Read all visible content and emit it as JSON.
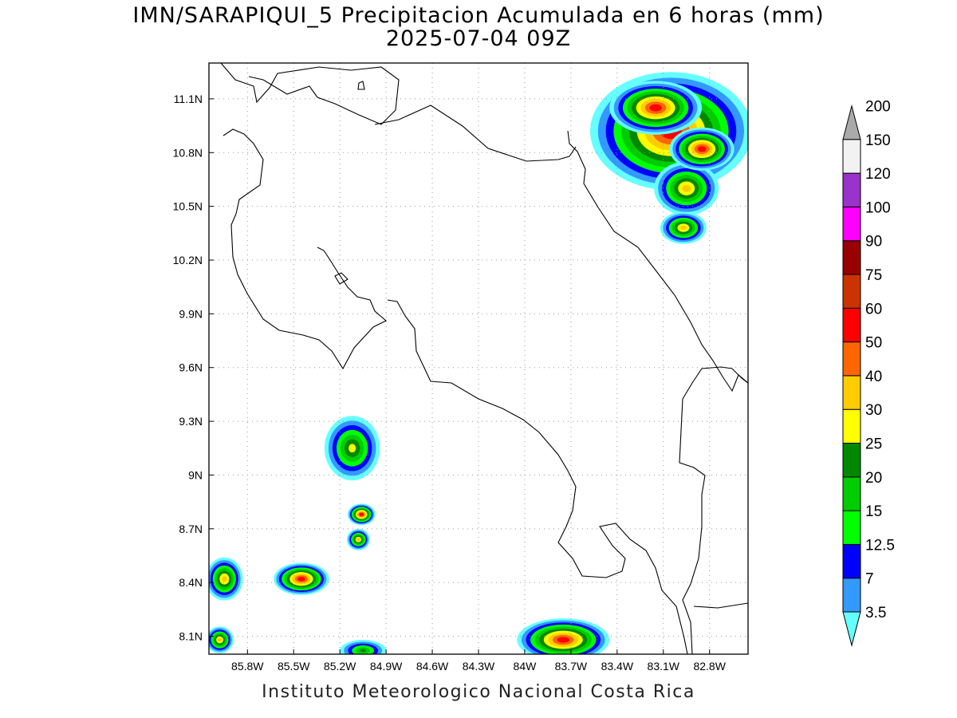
{
  "title": {
    "line1": "IMN/SARAPIQUI_5 Precipitacion Acumulada en 6 horas (mm)",
    "line2": "2025-07-04 09Z"
  },
  "credit": "Instituto Meteorologico Nacional Costa Rica",
  "map_extent": {
    "lon_min": -86.05,
    "lon_max": -82.55,
    "lat_min": 8.0,
    "lat_max": 11.3
  },
  "lon_ticks": [
    {
      "lon": -85.8,
      "label": "85.8W"
    },
    {
      "lon": -85.5,
      "label": "85.5W"
    },
    {
      "lon": -85.2,
      "label": "85.2W"
    },
    {
      "lon": -84.9,
      "label": "84.9W"
    },
    {
      "lon": -84.6,
      "label": "84.6W"
    },
    {
      "lon": -84.3,
      "label": "84.3W"
    },
    {
      "lon": -84.0,
      "label": "84W"
    },
    {
      "lon": -83.7,
      "label": "83.7W"
    },
    {
      "lon": -83.4,
      "label": "83.4W"
    },
    {
      "lon": -83.1,
      "label": "83.1W"
    },
    {
      "lon": -82.8,
      "label": "82.8W"
    }
  ],
  "lat_ticks": [
    {
      "lat": 11.1,
      "label": "11.1N"
    },
    {
      "lat": 10.8,
      "label": "10.8N"
    },
    {
      "lat": 10.5,
      "label": "10.5N"
    },
    {
      "lat": 10.2,
      "label": "10.2N"
    },
    {
      "lat": 9.9,
      "label": "9.9N"
    },
    {
      "lat": 9.6,
      "label": "9.6N"
    },
    {
      "lat": 9.3,
      "label": "9.3N"
    },
    {
      "lat": 9.0,
      "label": "9N"
    },
    {
      "lat": 8.7,
      "label": "8.7N"
    },
    {
      "lat": 8.4,
      "label": "8.4N"
    },
    {
      "lat": 8.1,
      "label": "8.1N"
    }
  ],
  "colorbar": {
    "levels": [
      {
        "label": "3.5",
        "color": "#66ffff"
      },
      {
        "label": "7",
        "color": "#3399ff"
      },
      {
        "label": "12.5",
        "color": "#0000ff"
      },
      {
        "label": "15",
        "color": "#00ff00"
      },
      {
        "label": "20",
        "color": "#00cc00"
      },
      {
        "label": "25",
        "color": "#008800"
      },
      {
        "label": "30",
        "color": "#ffff00"
      },
      {
        "label": "40",
        "color": "#ffcc00"
      },
      {
        "label": "50",
        "color": "#ff6600"
      },
      {
        "label": "60",
        "color": "#ff0000"
      },
      {
        "label": "75",
        "color": "#cc3300"
      },
      {
        "label": "90",
        "color": "#990000"
      },
      {
        "label": "100",
        "color": "#ff00ff"
      },
      {
        "label": "120",
        "color": "#9933cc"
      },
      {
        "label": "150",
        "color": "#f2f2f2"
      },
      {
        "label": "200",
        "color": "#aaaaaa"
      }
    ]
  },
  "precip_cells": [
    {
      "lon": -83.05,
      "lat": 10.92,
      "rx": 0.35,
      "ry": 0.22,
      "max_mm": 60
    },
    {
      "lon": -83.15,
      "lat": 11.05,
      "rx": 0.2,
      "ry": 0.1,
      "max_mm": 60
    },
    {
      "lon": -82.95,
      "lat": 10.6,
      "rx": 0.14,
      "ry": 0.1,
      "max_mm": 40
    },
    {
      "lon": -82.97,
      "lat": 10.38,
      "rx": 0.1,
      "ry": 0.06,
      "max_mm": 40
    },
    {
      "lon": -82.85,
      "lat": 10.82,
      "rx": 0.14,
      "ry": 0.08,
      "max_mm": 60
    },
    {
      "lon": -85.12,
      "lat": 9.15,
      "rx": 0.12,
      "ry": 0.12,
      "max_mm": 30
    },
    {
      "lon": -85.06,
      "lat": 8.78,
      "rx": 0.06,
      "ry": 0.04,
      "max_mm": 60
    },
    {
      "lon": -85.08,
      "lat": 8.64,
      "rx": 0.05,
      "ry": 0.04,
      "max_mm": 40
    },
    {
      "lon": -85.45,
      "lat": 8.42,
      "rx": 0.12,
      "ry": 0.06,
      "max_mm": 60
    },
    {
      "lon": -85.95,
      "lat": 8.42,
      "rx": 0.08,
      "ry": 0.08,
      "max_mm": 40
    },
    {
      "lon": -85.98,
      "lat": 8.08,
      "rx": 0.06,
      "ry": 0.05,
      "max_mm": 40
    },
    {
      "lon": -83.75,
      "lat": 8.08,
      "rx": 0.2,
      "ry": 0.08,
      "max_mm": 60
    },
    {
      "lon": -85.05,
      "lat": 8.02,
      "rx": 0.1,
      "ry": 0.04,
      "max_mm": 25
    }
  ]
}
